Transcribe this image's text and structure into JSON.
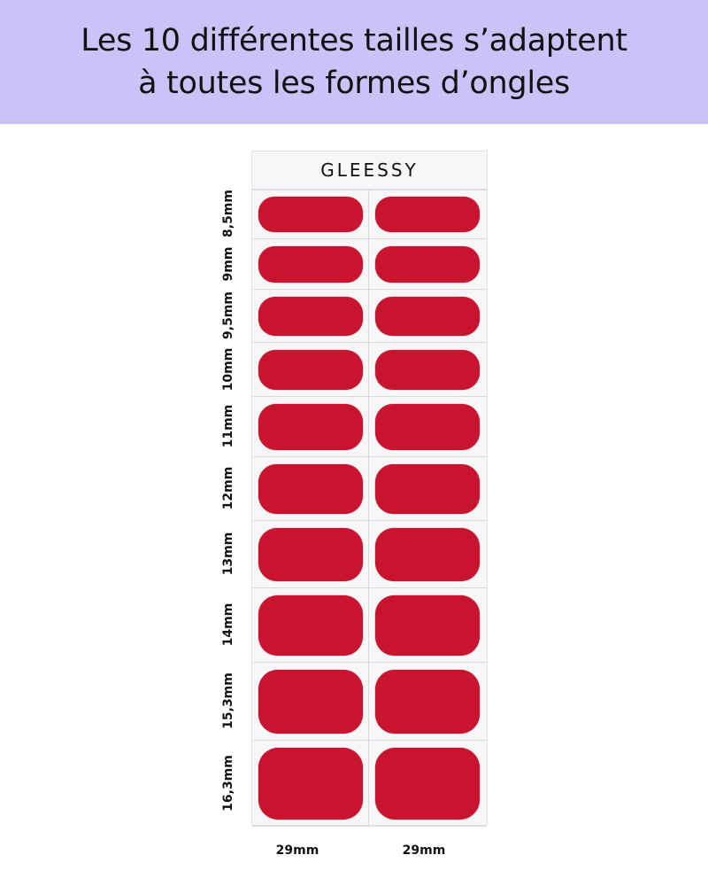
{
  "header": {
    "line1": "Les 10 différentes tailles s’adaptent",
    "line2": "à toutes les formes d’ongles",
    "background": "#cbc3f8"
  },
  "sheet": {
    "brand": "GLEESSY",
    "nail_color": "#c8142e",
    "sizes": [
      "8,5mm",
      "9mm",
      "9,5mm",
      "10mm",
      "11mm",
      "12mm",
      "13mm",
      "14mm",
      "15,3mm",
      "16,3mm"
    ],
    "widths": [
      "29mm",
      "29mm"
    ]
  }
}
